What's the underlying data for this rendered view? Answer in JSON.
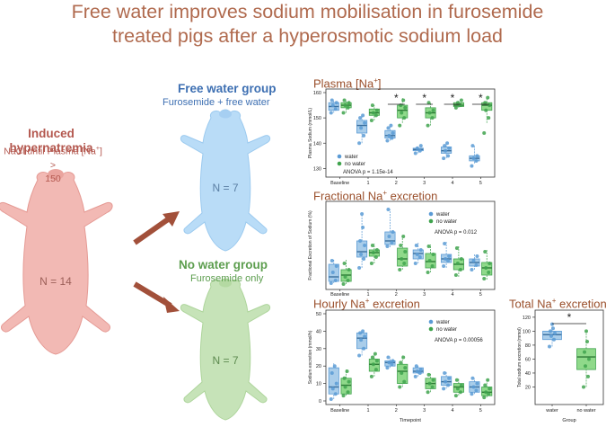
{
  "title": {
    "line1": "Free water improves sodium mobilisation in furosemide",
    "line2": "treated pigs after a hyperosmotic sodium load"
  },
  "induced": {
    "title": "Induced hypernatremia",
    "sub1": "NaCl until Plasma [Na",
    "sub_sup": "+",
    "sub2": "] >",
    "sub3": "150",
    "n_label": "N = 14"
  },
  "free_water": {
    "title": "Free water group",
    "sub": "Furosemide + free water",
    "n_label": "N = 7"
  },
  "no_water": {
    "title": "No water group",
    "sub": "Furosemide only",
    "n_label": "N = 7"
  },
  "colors": {
    "water": "#5b9bd5",
    "no_water": "#3fa34d",
    "water_fill": "#a9cdea",
    "no_water_fill": "#8fd98a",
    "title_brown": "#b06a4e",
    "free_blue": "#3d6fb2",
    "no_green": "#5d9e4f",
    "arrow": "#a2503a"
  },
  "panels": {
    "plasma": {
      "title_pre": "Plasma [Na",
      "title_sup": "+",
      "title_post": "]",
      "ylabel": "Plasma Sodium (mmol/L)"
    },
    "fractional": {
      "title_pre": "Fractional Na",
      "title_sup": "+",
      "title_post": " excretion",
      "ylabel": "Fractional Excretion of Sodium (%)"
    },
    "hourly": {
      "title_pre": "Hourly Na",
      "title_sup": "+",
      "title_post": " excretion",
      "ylabel": "Sodium excretion (mmol/h)",
      "xlabel": "Timepoint"
    },
    "total": {
      "title_pre": "Total Na",
      "title_sup": "+",
      "title_post": " excretion",
      "ylabel": "Total sodium excretion (mmol)",
      "xlabel": "Group"
    }
  },
  "chart_data": [
    {
      "type": "box",
      "title": "Plasma [Na+]",
      "ylabel": "Plasma Sodium (mmol/L)",
      "ylim": [
        128,
        160
      ],
      "yticks": [
        130,
        140,
        150,
        160
      ],
      "categories": [
        "Baseline",
        "1",
        "2",
        "3",
        "4",
        "5"
      ],
      "legend": [
        "water",
        "no water"
      ],
      "annotation": "ANOVA p = 1.15e-14",
      "significance": [
        "",
        "",
        "*",
        "*",
        "*",
        "*"
      ],
      "series": [
        {
          "name": "water",
          "boxes": [
            {
              "min": 152,
              "q1": 153,
              "median": 154.5,
              "q3": 156,
              "max": 157,
              "points": [
                152,
                153.5,
                155,
                156,
                157
              ]
            },
            {
              "min": 140,
              "q1": 144,
              "median": 147,
              "q3": 149,
              "max": 151,
              "points": [
                140,
                143,
                146,
                148,
                150,
                151
              ]
            },
            {
              "min": 141,
              "q1": 142,
              "median": 143,
              "q3": 145,
              "max": 147,
              "points": [
                141,
                142,
                143,
                144,
                146,
                147
              ]
            },
            {
              "min": 136,
              "q1": 137,
              "median": 137.5,
              "q3": 138,
              "max": 139,
              "points": [
                136,
                137,
                138,
                139
              ]
            },
            {
              "min": 134,
              "q1": 136,
              "median": 137,
              "q3": 138.5,
              "max": 140,
              "points": [
                134,
                135,
                137,
                138,
                139,
                140
              ]
            },
            {
              "min": 132,
              "q1": 133,
              "median": 134,
              "q3": 135,
              "max": 139,
              "points": [
                131,
                133,
                134,
                135,
                139
              ]
            }
          ]
        },
        {
          "name": "no water",
          "boxes": [
            {
              "min": 152,
              "q1": 154,
              "median": 155,
              "q3": 156,
              "max": 157,
              "points": [
                152,
                154,
                155,
                156,
                157
              ]
            },
            {
              "min": 149,
              "q1": 151,
              "median": 152,
              "q3": 153.5,
              "max": 155,
              "points": [
                149,
                151,
                152,
                153,
                155
              ]
            },
            {
              "min": 148,
              "q1": 150,
              "median": 153,
              "q3": 155,
              "max": 158,
              "points": [
                147,
                150,
                152,
                154,
                155,
                157
              ]
            },
            {
              "min": 147,
              "q1": 150,
              "median": 152,
              "q3": 154,
              "max": 156,
              "points": [
                147,
                150,
                152,
                153,
                156
              ]
            },
            {
              "min": 154,
              "q1": 154.5,
              "median": 155,
              "q3": 156,
              "max": 157,
              "points": [
                154,
                155,
                156,
                157
              ]
            },
            {
              "min": 148,
              "q1": 153,
              "median": 155,
              "q3": 156,
              "max": 158,
              "points": [
                144,
                150,
                153,
                155,
                156,
                158
              ]
            }
          ]
        }
      ]
    },
    {
      "type": "box",
      "title": "Fractional Na+ excretion",
      "ylabel": "Fractional Excretion of Sodium (%)",
      "ylim": [
        0,
        9
      ],
      "categories": [
        "Baseline",
        "1",
        "2",
        "3",
        "4",
        "5"
      ],
      "legend": [
        "water",
        "no water"
      ],
      "annotation": "ANOVA p = 0.012",
      "series": [
        {
          "name": "water",
          "boxes": [
            {
              "min": 0.3,
              "q1": 0.5,
              "median": 1.0,
              "q3": 2.4,
              "max": 3.0,
              "points": [
                0.3,
                0.6,
                1.5,
                2.2,
                2.8
              ]
            },
            {
              "min": 2.0,
              "q1": 3.2,
              "median": 3.8,
              "q3": 5.0,
              "max": 8.0,
              "points": [
                2.0,
                3.0,
                3.5,
                4.5,
                5.0,
                6.5,
                8.0
              ]
            },
            {
              "min": 4.3,
              "q1": 4.6,
              "median": 5.0,
              "q3": 6.0,
              "max": 8.5,
              "points": [
                4.4,
                4.8,
                5.5,
                6.0,
                8.5
              ]
            },
            {
              "min": 2.5,
              "q1": 3.0,
              "median": 3.6,
              "q3": 4.0,
              "max": 4.8,
              "points": [
                2.5,
                3.2,
                3.5,
                4.0,
                4.5
              ]
            },
            {
              "min": 2.0,
              "q1": 2.6,
              "median": 3.0,
              "q3": 3.5,
              "max": 5.0,
              "points": [
                2.2,
                2.8,
                3.0,
                3.3,
                4.7
              ]
            },
            {
              "min": 1.8,
              "q1": 2.2,
              "median": 2.6,
              "q3": 3.0,
              "max": 3.6,
              "points": [
                1.8,
                2.3,
                2.8,
                3.3
              ]
            }
          ]
        },
        {
          "name": "no water",
          "boxes": [
            {
              "min": 0.2,
              "q1": 0.5,
              "median": 1.2,
              "q3": 1.8,
              "max": 3.0,
              "points": [
                0.2,
                0.6,
                1.0,
                1.8,
                2.5
              ]
            },
            {
              "min": 2.5,
              "q1": 3.3,
              "median": 3.7,
              "q3": 4.0,
              "max": 4.7,
              "points": [
                2.5,
                3.2,
                3.7,
                4.0,
                4.5
              ]
            },
            {
              "min": 1.8,
              "q1": 2.2,
              "median": 3.0,
              "q3": 4.2,
              "max": 5.5,
              "points": [
                1.8,
                2.5,
                3.0,
                3.8,
                4.5,
                5.5
              ]
            },
            {
              "min": 1.5,
              "q1": 2.0,
              "median": 2.7,
              "q3": 3.6,
              "max": 4.6,
              "points": [
                1.5,
                2.2,
                2.8,
                3.5,
                4.4
              ]
            },
            {
              "min": 1.0,
              "q1": 1.8,
              "median": 2.4,
              "q3": 3.0,
              "max": 4.4,
              "points": [
                1.2,
                1.8,
                2.5,
                3.0,
                4.2
              ]
            },
            {
              "min": 0.7,
              "q1": 1.2,
              "median": 2.0,
              "q3": 2.6,
              "max": 4.0,
              "points": [
                0.8,
                1.5,
                2.0,
                2.5,
                3.8
              ]
            }
          ]
        }
      ]
    },
    {
      "type": "box",
      "title": "Hourly Na+ excretion",
      "ylabel": "Sodium excretion (mmol/h)",
      "xlabel": "Timepoint",
      "ylim": [
        0,
        50
      ],
      "yticks": [
        0,
        10,
        20,
        30,
        40,
        50
      ],
      "categories": [
        "Baseline",
        "1",
        "2",
        "3",
        "4",
        "5"
      ],
      "legend": [
        "water",
        "no water"
      ],
      "annotation": "ANOVA p = 0.00056",
      "series": [
        {
          "name": "water",
          "boxes": [
            {
              "min": 1,
              "q1": 4,
              "median": 8,
              "q3": 19,
              "max": 22,
              "points": [
                1,
                4,
                7,
                10,
                16,
                20
              ]
            },
            {
              "min": 26,
              "q1": 30,
              "median": 36,
              "q3": 39,
              "max": 40,
              "points": [
                26,
                30,
                35,
                37,
                39,
                40
              ]
            },
            {
              "min": 19,
              "q1": 20,
              "median": 22,
              "q3": 23,
              "max": 25,
              "points": [
                19,
                21,
                22,
                23,
                25
              ]
            },
            {
              "min": 14,
              "q1": 16,
              "median": 17,
              "q3": 19,
              "max": 20,
              "points": [
                14,
                16,
                17,
                18,
                20
              ]
            },
            {
              "min": 7,
              "q1": 9,
              "median": 11,
              "q3": 14,
              "max": 17,
              "points": [
                7,
                9,
                11,
                13,
                16
              ]
            },
            {
              "min": 4,
              "q1": 5,
              "median": 8,
              "q3": 11,
              "max": 13,
              "points": [
                4,
                6,
                8,
                10,
                13
              ]
            }
          ]
        },
        {
          "name": "no water",
          "boxes": [
            {
              "min": 3,
              "q1": 4,
              "median": 9,
              "q3": 13,
              "max": 18,
              "points": [
                3,
                5,
                8,
                11,
                13,
                17
              ]
            },
            {
              "min": 14,
              "q1": 17,
              "median": 21,
              "q3": 24,
              "max": 27,
              "points": [
                14,
                18,
                21,
                23,
                25,
                27
              ]
            },
            {
              "min": 8,
              "q1": 10,
              "median": 17,
              "q3": 21,
              "max": 26,
              "points": [
                8,
                11,
                16,
                19,
                22,
                25
              ]
            },
            {
              "min": 5,
              "q1": 7,
              "median": 10,
              "q3": 13,
              "max": 16,
              "points": [
                5,
                8,
                10,
                12,
                15
              ]
            },
            {
              "min": 3,
              "q1": 5,
              "median": 8,
              "q3": 10,
              "max": 13,
              "points": [
                3,
                5,
                7,
                9,
                12
              ]
            },
            {
              "min": 2,
              "q1": 3,
              "median": 5,
              "q3": 8,
              "max": 12,
              "points": [
                2,
                4,
                5,
                7,
                9,
                12
              ]
            }
          ]
        }
      ]
    },
    {
      "type": "box",
      "title": "Total Na+ excretion",
      "ylabel": "Total sodium excretion (mmol)",
      "xlabel": "Group",
      "ylim": [
        0,
        125
      ],
      "yticks": [
        20,
        40,
        60,
        80,
        100,
        120
      ],
      "categories": [
        "water",
        "no water"
      ],
      "significance": "*",
      "series": [
        {
          "name": "water",
          "boxes": [
            {
              "min": 78,
              "q1": 88,
              "median": 95,
              "q3": 100,
              "max": 110,
              "points": [
                78,
                88,
                93,
                97,
                100,
                104,
                110
              ]
            }
          ]
        },
        {
          "name": "no water",
          "boxes": [
            {
              "min": 20,
              "q1": 45,
              "median": 63,
              "q3": 75,
              "max": 100,
              "points": [
                20,
                35,
                50,
                60,
                70,
                85,
                100
              ]
            }
          ]
        }
      ]
    }
  ]
}
